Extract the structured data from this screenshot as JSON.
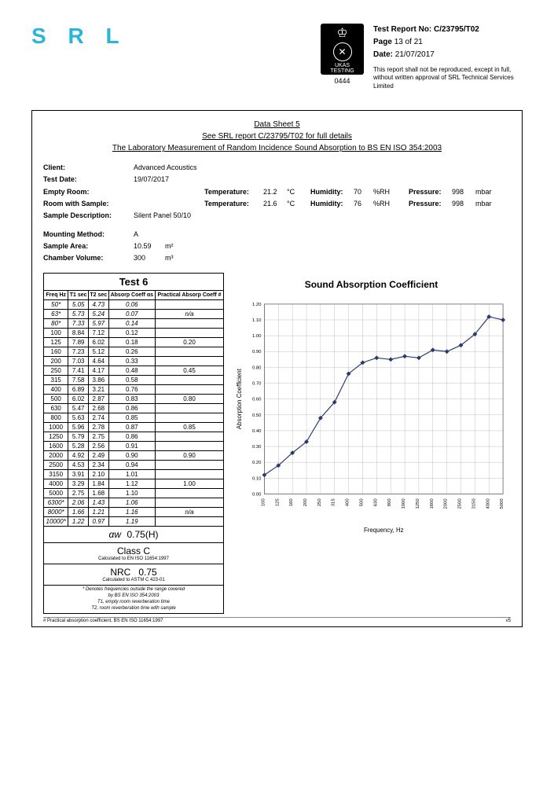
{
  "logo": "S R L",
  "ukas": {
    "label1": "UKAS",
    "label2": "TESTING",
    "number": "0444"
  },
  "report": {
    "no_label": "Test Report No:",
    "no": "C/23795/T02",
    "page_label": "Page",
    "page": "13 of 21",
    "date_label": "Date:",
    "date": "21/07/2017",
    "disclaimer": "This report shall not be reproduced, except in full, without written approval of SRL Technical Services Limited"
  },
  "sheet": {
    "line1": "Data Sheet 5",
    "line2": "See SRL report C/23795/T02 for full details",
    "line3": "The Laboratory Measurement of Random Incidence Sound Absorption to BS EN ISO 354:2003"
  },
  "meta": {
    "client_lab": "Client:",
    "client": "Advanced Acoustics",
    "testdate_lab": "Test Date:",
    "testdate": "19/07/2017",
    "empty_lab": "Empty Room:",
    "temp_lab": "Temperature:",
    "hum_lab": "Humidity:",
    "pres_lab": "Pressure:",
    "er_temp": "21.2",
    "er_temp_u": "°C",
    "er_hum": "70",
    "er_hum_u": "%RH",
    "er_pres": "998",
    "er_pres_u": "mbar",
    "ws_lab": "Room with Sample:",
    "ws_temp": "21.6",
    "ws_temp_u": "°C",
    "ws_hum": "76",
    "ws_hum_u": "%RH",
    "ws_pres": "998",
    "ws_pres_u": "mbar",
    "sd_lab": "Sample Description:",
    "sd": "Silent Panel 50/10"
  },
  "mount": {
    "mm_lab": "Mounting Method:",
    "mm": "A",
    "sa_lab": "Sample Area:",
    "sa": "10.59",
    "sa_u": "m²",
    "cv_lab": "Chamber Volume:",
    "cv": "300",
    "cv_u": "m³"
  },
  "table": {
    "title": "Test 6",
    "h_freq": "Freq Hz",
    "h_t1": "T1 sec",
    "h_t2": "T2 sec",
    "h_abs": "Absorp Coeff αs",
    "h_prac": "Practical Absorp Coeff #",
    "rows": [
      {
        "f": "50*",
        "t1": "5.05",
        "t2": "4.73",
        "a": "0.06",
        "p": ""
      },
      {
        "f": "63*",
        "t1": "5.73",
        "t2": "5.24",
        "a": "0.07",
        "p": "n/a"
      },
      {
        "f": "80*",
        "t1": "7.33",
        "t2": "5.97",
        "a": "0.14",
        "p": ""
      },
      {
        "f": "100",
        "t1": "8.84",
        "t2": "7.12",
        "a": "0.12",
        "p": ""
      },
      {
        "f": "125",
        "t1": "7.89",
        "t2": "6.02",
        "a": "0.18",
        "p": "0.20"
      },
      {
        "f": "160",
        "t1": "7.23",
        "t2": "5.12",
        "a": "0.26",
        "p": ""
      },
      {
        "f": "200",
        "t1": "7.03",
        "t2": "4.64",
        "a": "0.33",
        "p": ""
      },
      {
        "f": "250",
        "t1": "7.41",
        "t2": "4.17",
        "a": "0.48",
        "p": "0.45"
      },
      {
        "f": "315",
        "t1": "7.58",
        "t2": "3.86",
        "a": "0.58",
        "p": ""
      },
      {
        "f": "400",
        "t1": "6.89",
        "t2": "3.21",
        "a": "0.76",
        "p": ""
      },
      {
        "f": "500",
        "t1": "6.02",
        "t2": "2.87",
        "a": "0.83",
        "p": "0.80"
      },
      {
        "f": "630",
        "t1": "5.47",
        "t2": "2.68",
        "a": "0.86",
        "p": ""
      },
      {
        "f": "800",
        "t1": "5.63",
        "t2": "2.74",
        "a": "0.85",
        "p": ""
      },
      {
        "f": "1000",
        "t1": "5.96",
        "t2": "2.78",
        "a": "0.87",
        "p": "0.85"
      },
      {
        "f": "1250",
        "t1": "5.79",
        "t2": "2.75",
        "a": "0.86",
        "p": ""
      },
      {
        "f": "1600",
        "t1": "5.28",
        "t2": "2.56",
        "a": "0.91",
        "p": ""
      },
      {
        "f": "2000",
        "t1": "4.92",
        "t2": "2.49",
        "a": "0.90",
        "p": "0.90"
      },
      {
        "f": "2500",
        "t1": "4.53",
        "t2": "2.34",
        "a": "0.94",
        "p": ""
      },
      {
        "f": "3150",
        "t1": "3.91",
        "t2": "2.10",
        "a": "1.01",
        "p": ""
      },
      {
        "f": "4000",
        "t1": "3.29",
        "t2": "1.84",
        "a": "1.12",
        "p": "1.00"
      },
      {
        "f": "5000",
        "t1": "2.75",
        "t2": "1.68",
        "a": "1.10",
        "p": ""
      },
      {
        "f": "6300*",
        "t1": "2.06",
        "t2": "1.43",
        "a": "1.06",
        "p": ""
      },
      {
        "f": "8000*",
        "t1": "1.66",
        "t2": "1.21",
        "a": "1.16",
        "p": "n/a"
      },
      {
        "f": "10000*",
        "t1": "1.22",
        "t2": "0.97",
        "a": "1.19",
        "p": ""
      }
    ],
    "italics": [
      "50*",
      "63*",
      "80*",
      "6300*",
      "8000*",
      "10000*"
    ]
  },
  "summary": {
    "alpha_sym": "αw",
    "alpha_val": "0.75(H)",
    "class_lab": "Class C",
    "class_note": "Calculated to EN ISO 11654:1997",
    "nrc_lab": "NRC",
    "nrc_val": "0.75",
    "nrc_note": "Calculated to ASTM C 423-01",
    "fn1": "* Denotes frequencies outside the range covered",
    "fn2": "by BS EN ISO 354:2003",
    "fn3": "T1, empty room reverberation time",
    "fn4": "T2, room reverberation time with sample"
  },
  "chart": {
    "title": "Sound Absorption Coefficient",
    "ylabel": "Absorption Coefficient",
    "xlabel": "Frequency, Hz",
    "ylim": [
      0,
      1.2
    ],
    "ytick_step": 0.1,
    "x_ticks": [
      "100",
      "125",
      "160",
      "200",
      "250",
      "315",
      "400",
      "500",
      "630",
      "800",
      "1000",
      "1250",
      "1600",
      "2000",
      "2500",
      "3150",
      "4000",
      "5000"
    ],
    "values": [
      0.12,
      0.18,
      0.26,
      0.33,
      0.48,
      0.58,
      0.76,
      0.83,
      0.86,
      0.85,
      0.87,
      0.86,
      0.91,
      0.9,
      0.94,
      1.01,
      1.12,
      1.1
    ],
    "line_color": "#2a3a6b",
    "marker": "diamond",
    "marker_size": 3,
    "grid_color": "#b0b0b0",
    "bg_color": "#ffffff",
    "title_fontsize": 12,
    "label_fontsize": 8,
    "tick_fontsize": 6
  },
  "footer": {
    "left": "# Practical absorption coefficient, BS EN ISO 11654:1997",
    "right": "v5"
  }
}
